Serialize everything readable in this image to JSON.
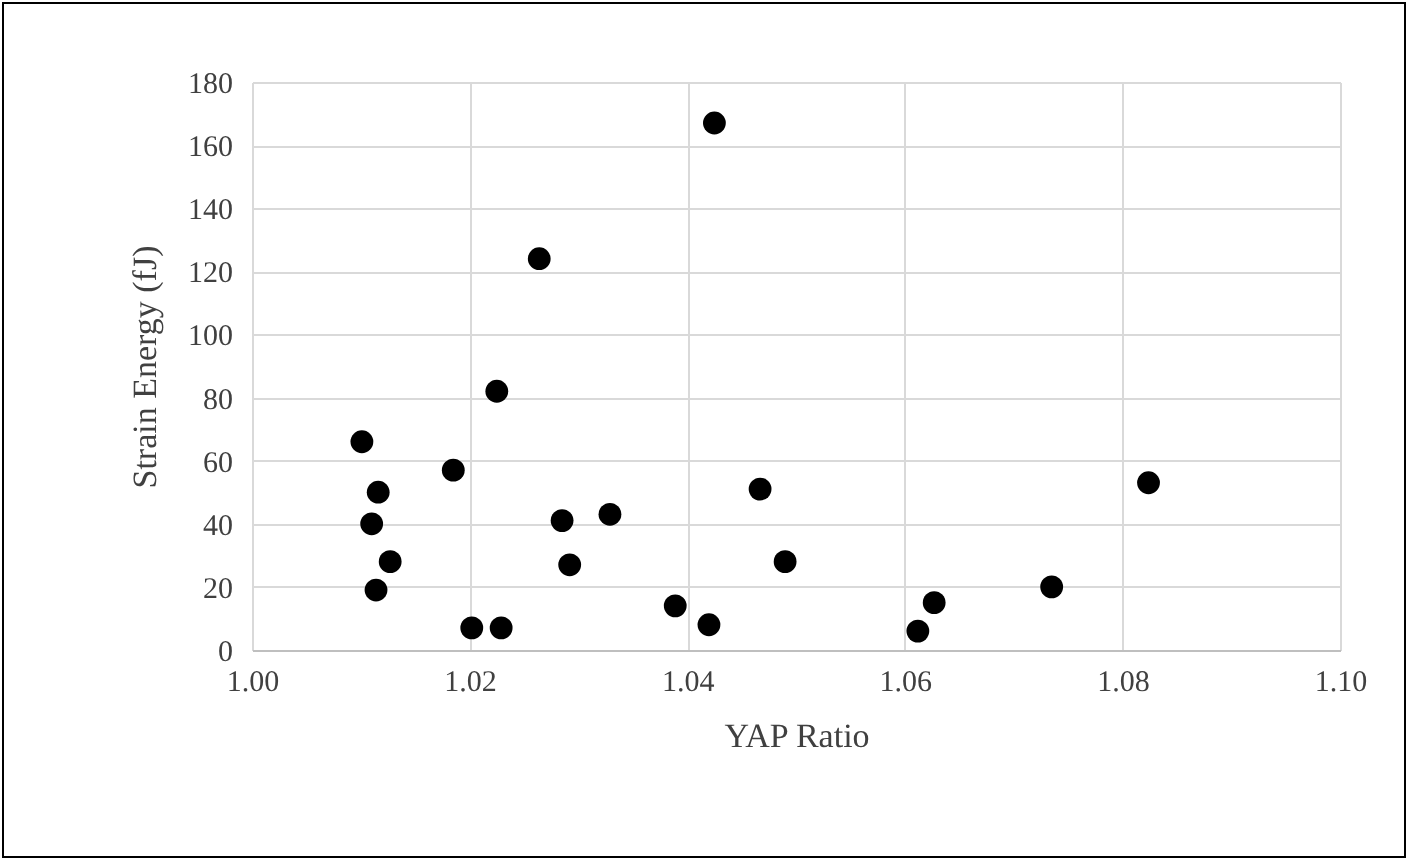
{
  "chart_data": {
    "type": "scatter",
    "xlabel": "YAP Ratio",
    "ylabel": "Strain Energy (fJ)",
    "x": [
      1.0425,
      1.0264,
      1.0225,
      1.0101,
      1.0185,
      1.0116,
      1.011,
      1.0127,
      1.0114,
      1.0202,
      1.0229,
      1.0285,
      1.0329,
      1.0292,
      1.0389,
      1.042,
      1.0467,
      1.049,
      1.0612,
      1.0627,
      1.0735,
      1.0824
    ],
    "series": [
      {
        "color": "#000000",
        "values": [
          167,
          124,
          82,
          66,
          57,
          50,
          40,
          28,
          19,
          7,
          7,
          41,
          43,
          27,
          14,
          8,
          51,
          28,
          6,
          15,
          20,
          53
        ]
      }
    ],
    "xlim": [
      1.0,
      1.1
    ],
    "xticks": [
      {
        "value": 1.0,
        "label": "1.00"
      },
      {
        "value": 1.02,
        "label": "1.02"
      },
      {
        "value": 1.04,
        "label": "1.04"
      },
      {
        "value": 1.06,
        "label": "1.06"
      },
      {
        "value": 1.08,
        "label": "1.08"
      },
      {
        "value": 1.1,
        "label": "1.10"
      }
    ],
    "ylim": [
      0,
      180
    ],
    "yticks": [
      0,
      20,
      40,
      60,
      80,
      100,
      120,
      140,
      160,
      180
    ],
    "grid": true,
    "marker": "circle"
  }
}
